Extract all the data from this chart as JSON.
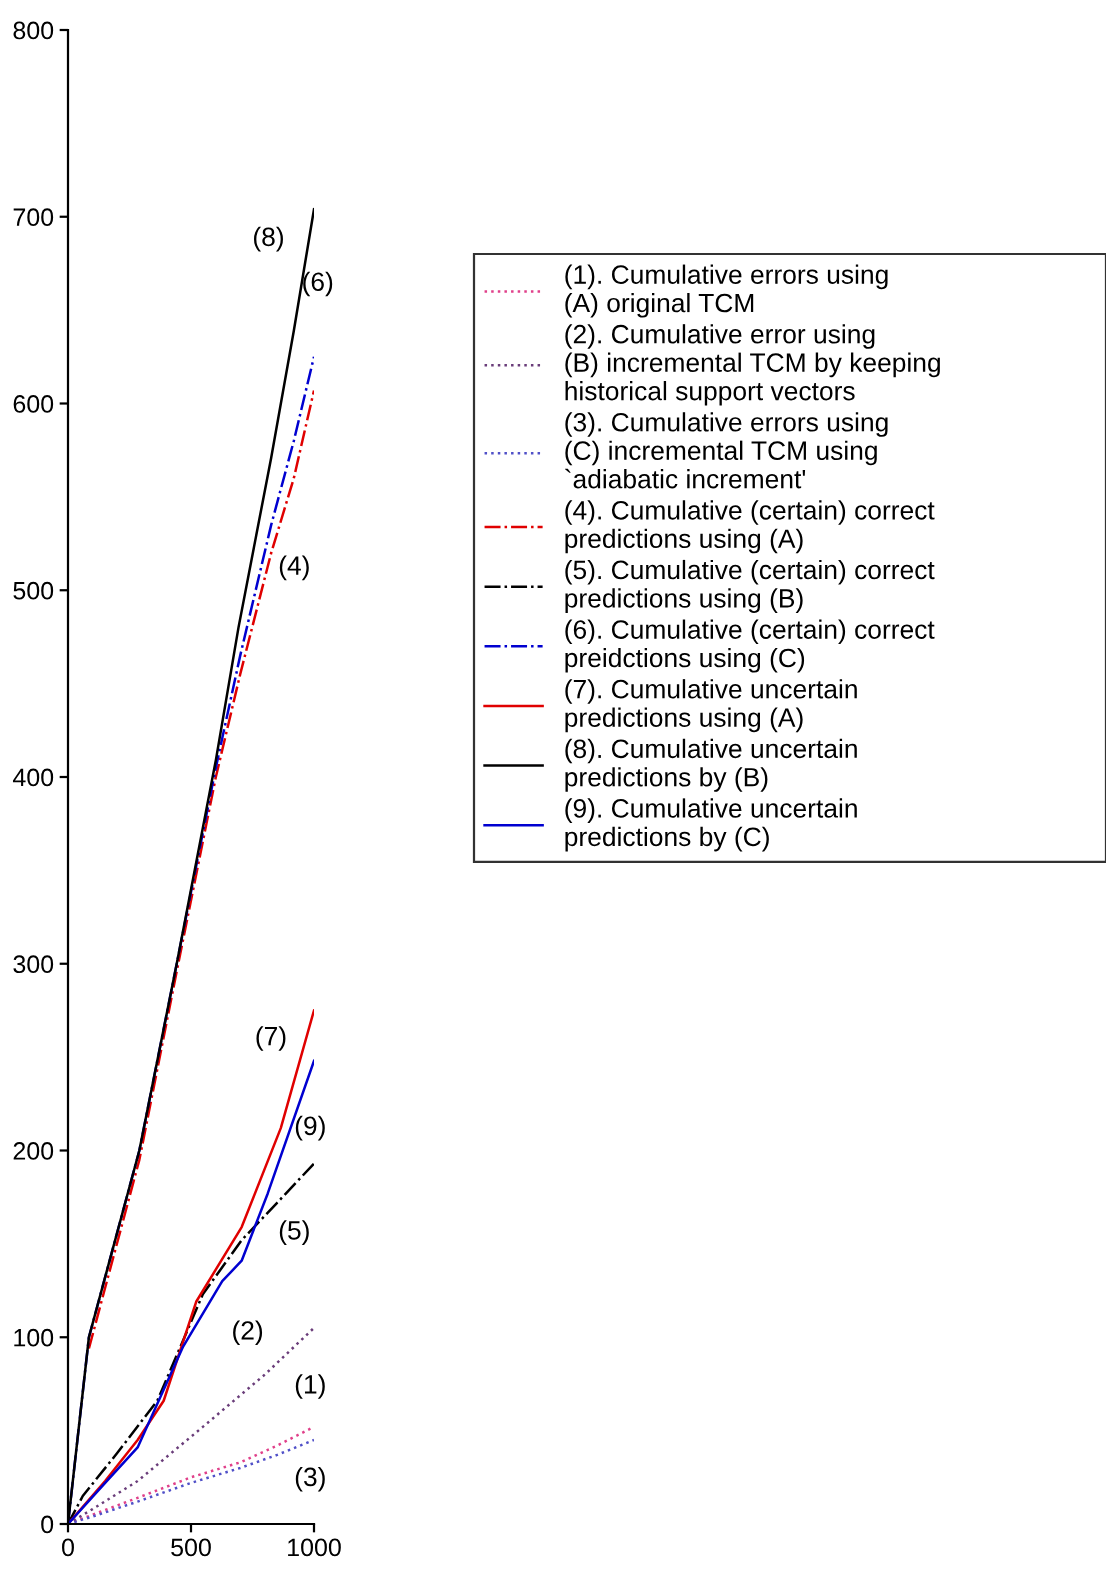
{
  "chart_data": {
    "type": "line",
    "xlim": [
      0,
      1000
    ],
    "ylim": [
      0,
      800
    ],
    "xticks": [
      0,
      500,
      1000
    ],
    "yticks": [
      0,
      100,
      200,
      300,
      400,
      500,
      600,
      700,
      800
    ],
    "grid": false,
    "legend": "right",
    "marker": "none",
    "series": [
      {
        "name": "(1). Cumulative errors using\n(A) original TCM",
        "color": "#e0408a",
        "line_style": "dotted",
        "x": [
          0,
          100,
          283,
          500,
          700,
          850,
          1000
        ],
        "values": [
          0,
          5,
          14,
          25,
          33,
          42,
          52
        ]
      },
      {
        "name": "(2). Cumulative error using\n(B) incremental TCM by keeping\nhistorical support vectors",
        "color": "#6a3d7a",
        "line_style": "dotted",
        "x": [
          0,
          100,
          283,
          548,
          800,
          1000
        ],
        "values": [
          0,
          8,
          23,
          52,
          80,
          105
        ]
      },
      {
        "name": "(3). Cumulative errors using\n(C) incremental TCM using\n`adiabatic increment'",
        "color": "#5050c8",
        "line_style": "dotted",
        "x": [
          0,
          100,
          283,
          500,
          700,
          850,
          1000
        ],
        "values": [
          0,
          4,
          12,
          22,
          30,
          37,
          45
        ]
      },
      {
        "name": "(4). Cumulative (certain) correct\npredictions using (A)",
        "color": "#e00000",
        "line_style": "dashdot",
        "x": [
          85,
          290,
          442,
          601,
          700,
          826,
          918,
          1000
        ],
        "values": [
          94,
          195,
          296,
          400,
          455,
          520,
          560,
          607
        ]
      },
      {
        "name": "(5). Cumulative (certain) correct\npredictions using (B)",
        "color": "#000000",
        "line_style": "dashdot",
        "x": [
          0,
          60,
          200,
          363,
          548,
          706,
          850,
          1000
        ],
        "values": [
          0,
          15,
          38,
          66,
          123,
          152,
          172,
          193
        ]
      },
      {
        "name": "(6). Cumulative (certain) correct\npreidctions using (C)",
        "color": "#0000d0",
        "line_style": "dashdot",
        "x": [
          0,
          85,
          290,
          442,
          601,
          700,
          826,
          918,
          1000
        ],
        "values": [
          0,
          100,
          200,
          300,
          405,
          465,
          535,
          580,
          625
        ]
      },
      {
        "name": "(7). Cumulative uncertain\npredictions using (A)",
        "color": "#e00000",
        "line_style": "solid",
        "x": [
          0,
          151,
          283,
          389,
          521,
          706,
          865,
          1000
        ],
        "values": [
          0,
          23,
          45,
          66,
          119,
          159,
          212,
          275
        ]
      },
      {
        "name": "(8). Cumulative uncertain\npredictions by (B)",
        "color": "#000000",
        "line_style": "solid",
        "x": [
          0,
          85,
          290,
          442,
          601,
          693,
          826,
          918,
          1000
        ],
        "values": [
          0,
          100,
          200,
          300,
          409,
          480,
          571,
          639,
          704
        ]
      },
      {
        "name": "(9). Cumulative uncertain\npredictions by (C)",
        "color": "#0000d0",
        "line_style": "solid",
        "x": [
          0,
          151,
          283,
          468,
          627,
          706,
          812,
          1000
        ],
        "values": [
          0,
          22,
          41,
          95,
          130,
          141,
          177,
          248
        ]
      }
    ],
    "annotations": [
      "(8)",
      "(6)",
      "(4)",
      "(7)",
      "(9)",
      "(5)",
      "(2)",
      "(1)",
      "(3)"
    ]
  }
}
